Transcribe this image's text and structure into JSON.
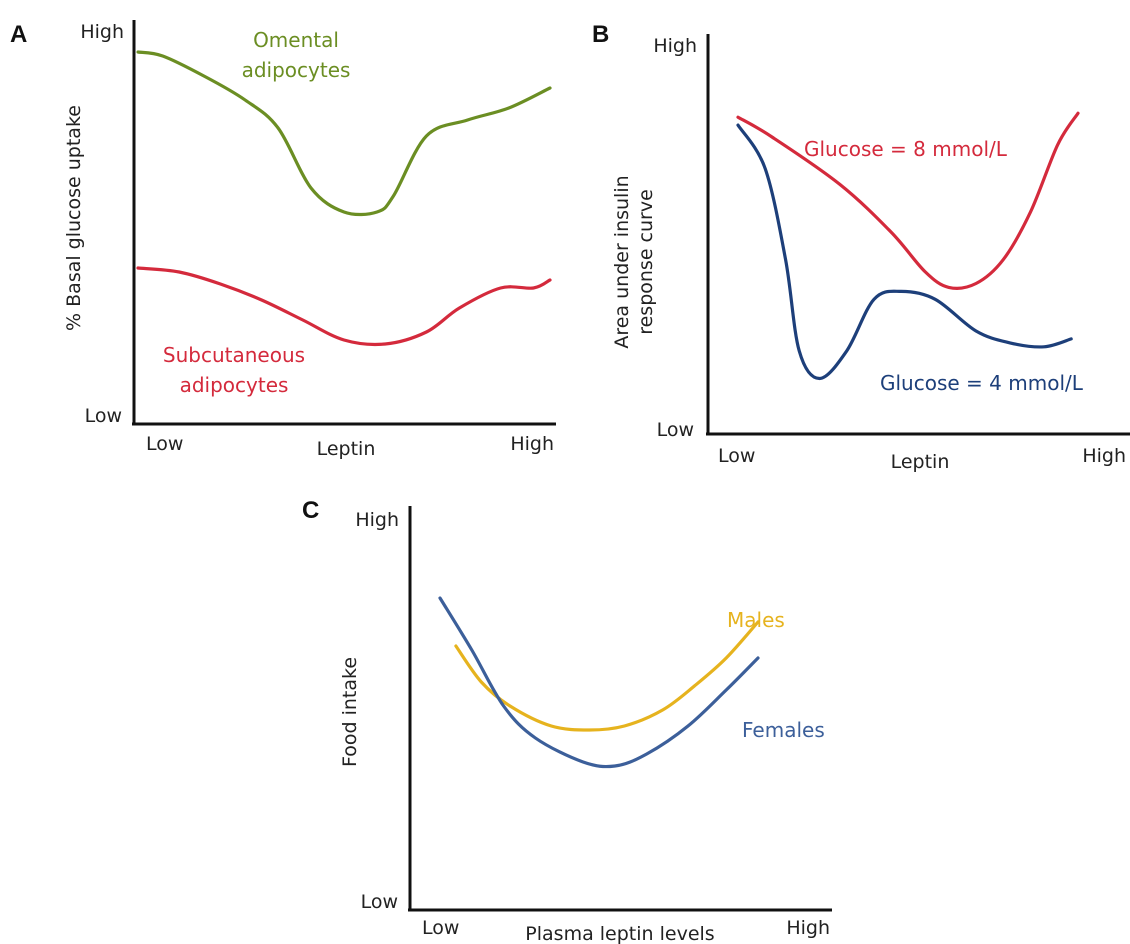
{
  "chart_data": [
    {
      "panel": "A",
      "type": "line",
      "xlabel": "Leptin",
      "ylabel": "% Basal glucose uptake",
      "x_ticks": [
        "Low",
        "High"
      ],
      "y_ticks": [
        "Low",
        "High"
      ],
      "xlim": [
        0,
        1
      ],
      "ylim": [
        0,
        1
      ],
      "series": [
        {
          "name": "Omental adipocytes",
          "label_lines": [
            "Omental",
            "adipocytes"
          ],
          "color": "#6b8e23",
          "x": [
            0,
            0.06,
            0.16,
            0.26,
            0.34,
            0.42,
            0.5,
            0.58,
            0.62,
            0.7,
            0.8,
            0.9,
            1.0
          ],
          "y": [
            0.92,
            0.91,
            0.86,
            0.8,
            0.73,
            0.58,
            0.52,
            0.52,
            0.56,
            0.71,
            0.75,
            0.78,
            0.83
          ]
        },
        {
          "name": "Subcutaneous adipocytes",
          "label_lines": [
            "Subcutaneous",
            "adipocytes"
          ],
          "color": "#d42a3c",
          "x": [
            0,
            0.1,
            0.2,
            0.3,
            0.4,
            0.5,
            0.6,
            0.7,
            0.78,
            0.88,
            0.96,
            1.0
          ],
          "y": [
            0.38,
            0.37,
            0.34,
            0.3,
            0.25,
            0.2,
            0.19,
            0.22,
            0.28,
            0.33,
            0.33,
            0.35
          ]
        }
      ]
    },
    {
      "panel": "B",
      "type": "line",
      "xlabel": "Leptin",
      "ylabel": "Area under insulin response curve",
      "ylabel_lines": [
        "Area under insulin",
        "response curve"
      ],
      "x_ticks": [
        "Low",
        "High"
      ],
      "y_ticks": [
        "Low",
        "High"
      ],
      "xlim": [
        0,
        1
      ],
      "ylim": [
        0,
        1
      ],
      "series": [
        {
          "name": "Glucose = 8 mmol/L",
          "color": "#d42a3c",
          "x": [
            0,
            0.1,
            0.3,
            0.45,
            0.55,
            0.62,
            0.7,
            0.78,
            0.86,
            0.94,
            1.0
          ],
          "y": [
            0.79,
            0.74,
            0.62,
            0.5,
            0.4,
            0.36,
            0.37,
            0.43,
            0.55,
            0.72,
            0.8
          ]
        },
        {
          "name": "Glucose = 4 mmol/L",
          "color": "#1d3f7a",
          "x": [
            0,
            0.08,
            0.14,
            0.18,
            0.24,
            0.32,
            0.4,
            0.48,
            0.58,
            0.7,
            0.8,
            0.9,
            0.98
          ],
          "y": [
            0.77,
            0.66,
            0.43,
            0.2,
            0.13,
            0.2,
            0.33,
            0.35,
            0.33,
            0.25,
            0.22,
            0.21,
            0.23
          ]
        }
      ]
    },
    {
      "panel": "C",
      "type": "line",
      "xlabel": "Plasma leptin levels",
      "ylabel": "Food intake",
      "x_ticks": [
        "Low",
        "High"
      ],
      "y_ticks": [
        "Low",
        "High"
      ],
      "xlim": [
        0,
        1
      ],
      "ylim": [
        0,
        1
      ],
      "series": [
        {
          "name": "Males",
          "color": "#e6b31e",
          "x": [
            0.05,
            0.13,
            0.22,
            0.35,
            0.47,
            0.58,
            0.7,
            0.8,
            0.9,
            1.0
          ],
          "y": [
            0.65,
            0.56,
            0.5,
            0.45,
            0.44,
            0.45,
            0.49,
            0.55,
            0.62,
            0.71
          ]
        },
        {
          "name": "Females",
          "color": "#3c5f9a",
          "x": [
            0,
            0.1,
            0.2,
            0.3,
            0.45,
            0.55,
            0.65,
            0.78,
            0.9,
            1.0
          ],
          "y": [
            0.77,
            0.64,
            0.5,
            0.42,
            0.36,
            0.35,
            0.38,
            0.45,
            0.54,
            0.62
          ]
        }
      ]
    }
  ]
}
